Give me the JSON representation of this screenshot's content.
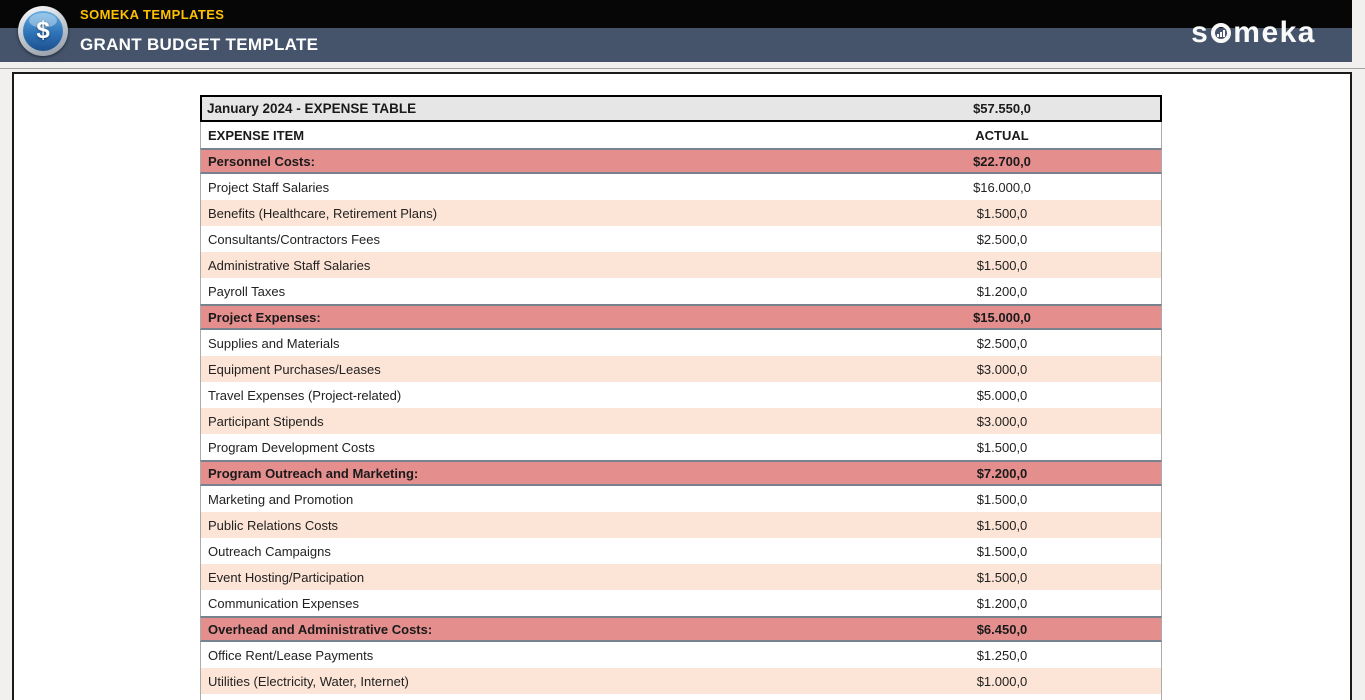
{
  "header": {
    "brand_label": "SOMEKA TEMPLATES",
    "page_title": "GRANT BUDGET TEMPLATE",
    "badge_icon": "dollar-circle-icon",
    "badge_glyph": "$",
    "wordmark_part1": "s",
    "wordmark_part2": "meka"
  },
  "table": {
    "title": "January 2024 - EXPENSE TABLE",
    "total": "$57.550,0",
    "col_item": "EXPENSE ITEM",
    "col_actual": "ACTUAL",
    "rows": [
      {
        "type": "category",
        "label": "Personnel Costs:",
        "value": "$22.700,0"
      },
      {
        "type": "item",
        "label": "Project Staff Salaries",
        "value": "$16.000,0"
      },
      {
        "type": "item",
        "label": "Benefits (Healthcare, Retirement Plans)",
        "value": "$1.500,0"
      },
      {
        "type": "item",
        "label": "Consultants/Contractors Fees",
        "value": "$2.500,0"
      },
      {
        "type": "item",
        "label": "Administrative Staff Salaries",
        "value": "$1.500,0"
      },
      {
        "type": "item",
        "label": "Payroll Taxes",
        "value": "$1.200,0"
      },
      {
        "type": "category",
        "label": "Project Expenses:",
        "value": "$15.000,0"
      },
      {
        "type": "item",
        "label": "Supplies and Materials",
        "value": "$2.500,0"
      },
      {
        "type": "item",
        "label": "Equipment Purchases/Leases",
        "value": "$3.000,0"
      },
      {
        "type": "item",
        "label": "Travel Expenses (Project-related)",
        "value": "$5.000,0"
      },
      {
        "type": "item",
        "label": "Participant Stipends",
        "value": "$3.000,0"
      },
      {
        "type": "item",
        "label": "Program Development Costs",
        "value": "$1.500,0"
      },
      {
        "type": "category",
        "label": "Program Outreach and Marketing:",
        "value": "$7.200,0"
      },
      {
        "type": "item",
        "label": "Marketing and Promotion",
        "value": "$1.500,0"
      },
      {
        "type": "item",
        "label": "Public Relations Costs",
        "value": "$1.500,0"
      },
      {
        "type": "item",
        "label": "Outreach Campaigns",
        "value": "$1.500,0"
      },
      {
        "type": "item",
        "label": "Event Hosting/Participation",
        "value": "$1.500,0"
      },
      {
        "type": "item",
        "label": "Communication Expenses",
        "value": "$1.200,0"
      },
      {
        "type": "category",
        "label": "Overhead and Administrative Costs:",
        "value": "$6.450,0"
      },
      {
        "type": "item",
        "label": "Office Rent/Lease Payments",
        "value": "$1.250,0"
      },
      {
        "type": "item",
        "label": "Utilities (Electricity, Water, Internet)",
        "value": "$1.000,0"
      }
    ]
  },
  "colors": {
    "band_top": "#060606",
    "band_bottom": "#45546B",
    "brand_yellow": "#FFC000",
    "table_title_bg": "#E7E6E6",
    "category_bg": "#E58E8E",
    "stripe_bg": "#FCE4D6"
  }
}
